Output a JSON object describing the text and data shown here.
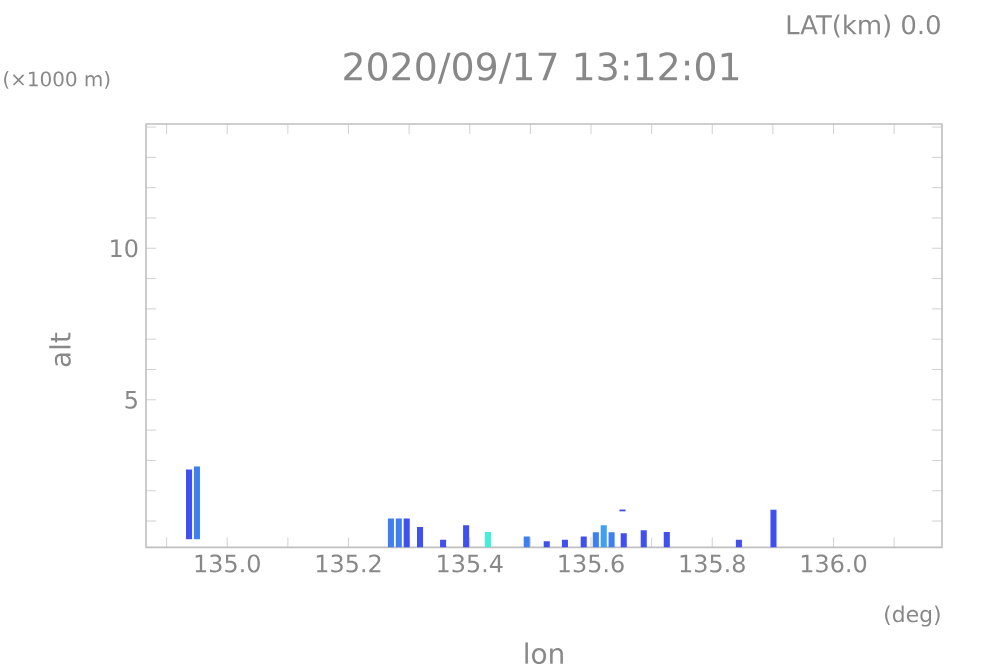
{
  "chart_data": {
    "type": "bar",
    "title": "2020/09/17 13:12:01",
    "xlabel": "lon",
    "ylabel": "alt",
    "annotations": [
      "LAT(km) 0.0",
      "(×1000 m)",
      "(deg)"
    ],
    "x": [
      134.937,
      134.95,
      135.27,
      135.283,
      135.296,
      135.318,
      135.356,
      135.394,
      135.43,
      135.494,
      135.527,
      135.557,
      135.588,
      135.608,
      135.621,
      135.634,
      135.652,
      135.654,
      135.687,
      135.725,
      135.844,
      135.901
    ],
    "base": [
      0.4,
      0.4,
      0.13,
      0.13,
      0.13,
      0.13,
      0.13,
      0.13,
      0.13,
      0.13,
      0.13,
      0.13,
      0.13,
      0.13,
      0.13,
      0.13,
      1.32,
      0.13,
      0.13,
      0.13,
      0.13,
      0.13
    ],
    "values": [
      2.3,
      2.4,
      0.95,
      0.95,
      0.95,
      0.67,
      0.25,
      0.73,
      0.51,
      0.36,
      0.2,
      0.25,
      0.36,
      0.5,
      0.73,
      0.5,
      0.06,
      0.47,
      0.57,
      0.51,
      0.25,
      1.24
    ],
    "colors": [
      "#4050f0",
      "#3f7ff0",
      "#3f7ff0",
      "#3f7ff0",
      "#4050f0",
      "#4050f0",
      "#4050f0",
      "#4050f0",
      "#40f0d8",
      "#3f7ff0",
      "#4050f0",
      "#4050f0",
      "#4050f0",
      "#3f7ff0",
      "#3f9ff0",
      "#3f7ff0",
      "#4050f0",
      "#4050f0",
      "#4050f0",
      "#4050f0",
      "#4050f0",
      "#4050f0"
    ],
    "xlim": [
      134.866,
      136.179
    ],
    "ylim": [
      0.13,
      14.1
    ],
    "xticks": [
      {
        "value": 134.9,
        "label": null
      },
      {
        "value": 135.0,
        "label": "135.0"
      },
      {
        "value": 135.1,
        "label": null
      },
      135.2,
      {
        "value": 135.3,
        "label": null
      },
      135.4,
      {
        "value": 135.5,
        "label": null
      },
      135.6,
      {
        "value": 135.7,
        "label": null
      },
      135.8,
      {
        "value": 135.9,
        "label": null
      },
      {
        "value": 136.0,
        "label": "136.0"
      },
      {
        "value": 136.1,
        "label": null
      }
    ],
    "yticks": [
      {
        "value": 1,
        "label": null
      },
      {
        "value": 2,
        "label": null
      },
      {
        "value": 3,
        "label": null
      },
      {
        "value": 4,
        "label": null
      },
      5,
      {
        "value": 6,
        "label": null
      },
      {
        "value": 7,
        "label": null
      },
      {
        "value": 8,
        "label": null
      },
      {
        "value": 9,
        "label": null
      },
      10,
      {
        "value": 11,
        "label": null
      },
      {
        "value": 12,
        "label": null
      },
      {
        "value": 13,
        "label": null
      },
      {
        "value": 14,
        "label": null
      }
    ],
    "grid": false
  }
}
